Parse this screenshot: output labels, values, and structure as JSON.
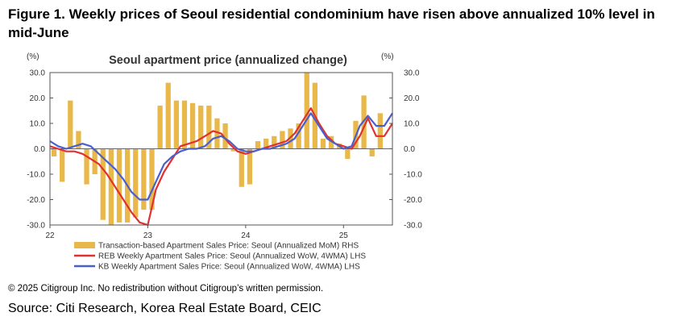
{
  "figure": {
    "title": "Figure 1. Weekly prices of Seoul residential condominium have risen above annualized 10% level in mid-June",
    "copyright": "© 2025 Citigroup Inc. No redistribution without Citigroup’s written permission.",
    "source": "Source: Citi Research, Korea Real Estate Board, CEIC"
  },
  "chart_data": {
    "type": "bar+line",
    "title": "Seoul apartment price (annualized change)",
    "left_axis_unit": "(%)",
    "right_axis_unit": "(%)",
    "ylim": [
      -30,
      30
    ],
    "left_ticks": [
      "30.0",
      "20.0",
      "10.0",
      "0.0",
      "-10.0",
      "-20.0",
      "-30.0"
    ],
    "right_ticks": [
      "30.0",
      "20.0",
      "10.0",
      "0.0",
      "-10.0",
      "-20.0",
      "-30.0"
    ],
    "x_ticks": [
      {
        "label": "22",
        "t": 0
      },
      {
        "label": "23",
        "t": 12
      },
      {
        "label": "24",
        "t": 24
      },
      {
        "label": "25",
        "t": 36
      }
    ],
    "x_range": [
      0,
      42
    ],
    "series": [
      {
        "name": "Transaction-based Apartment Sales Price: Seoul (Annualized MoM) RHS",
        "type": "bar",
        "axis": "right",
        "color": "#E8B84A",
        "x": [
          0,
          1,
          2,
          3,
          4,
          5,
          6,
          7,
          8,
          9,
          10,
          11,
          12,
          13,
          14,
          15,
          16,
          17,
          18,
          19,
          20,
          21,
          22,
          23,
          24,
          25,
          26,
          27,
          28,
          29,
          30,
          31,
          32,
          33,
          34,
          35,
          36,
          37,
          38,
          39,
          40
        ],
        "values": [
          -3,
          -13,
          19,
          7,
          -14,
          -10,
          -28,
          -30,
          -29,
          -29,
          -27,
          -24,
          -24,
          17,
          26,
          19,
          19,
          18,
          17,
          17,
          12,
          10,
          -1,
          -15,
          -14,
          3,
          4,
          5,
          7,
          8,
          10,
          30,
          26,
          4,
          5,
          2,
          -4,
          11,
          21,
          -3,
          14
        ]
      },
      {
        "name": "REB Weekly Apartment Sales Price: Seoul (Annualized WoW, 4WMA) LHS",
        "type": "line",
        "axis": "left",
        "color": "#E03030",
        "x": [
          0,
          1,
          2,
          3,
          4,
          5,
          6,
          7,
          8,
          9,
          10,
          11,
          12,
          13,
          14,
          15,
          16,
          17,
          18,
          19,
          20,
          21,
          22,
          23,
          24,
          25,
          26,
          27,
          28,
          29,
          30,
          31,
          32,
          33,
          34,
          35,
          36,
          37,
          38,
          39,
          40,
          41,
          42
        ],
        "values": [
          1,
          0,
          -1,
          -1,
          -2,
          -4,
          -6,
          -10,
          -15,
          -20,
          -25,
          -29,
          -30,
          -16,
          -9,
          -4,
          1,
          2,
          3,
          5,
          7,
          6,
          2,
          -1,
          -2,
          -1,
          0,
          1,
          2,
          3,
          6,
          11,
          16,
          10,
          5,
          2,
          1,
          0,
          5,
          12,
          5,
          5,
          10
        ]
      },
      {
        "name": "KB Weekly Apartment Sales Price: Seoul (Annualized WoW, 4WMA) LHS",
        "type": "line",
        "axis": "left",
        "color": "#4A5FCC",
        "x": [
          0,
          1,
          2,
          3,
          4,
          5,
          6,
          7,
          8,
          9,
          10,
          11,
          12,
          13,
          14,
          15,
          16,
          17,
          18,
          19,
          20,
          21,
          22,
          23,
          24,
          25,
          26,
          27,
          28,
          29,
          30,
          31,
          32,
          33,
          34,
          35,
          36,
          37,
          38,
          39,
          40,
          41,
          42
        ],
        "values": [
          3,
          1,
          0,
          1,
          2,
          1,
          -2,
          -5,
          -8,
          -12,
          -17,
          -20,
          -20,
          -13,
          -6,
          -3,
          -1,
          0,
          0,
          1,
          4,
          5,
          3,
          0,
          -1,
          -1,
          0,
          0,
          1,
          2,
          4,
          9,
          14,
          9,
          4,
          2,
          0,
          1,
          9,
          13,
          9,
          9,
          14
        ]
      }
    ]
  }
}
